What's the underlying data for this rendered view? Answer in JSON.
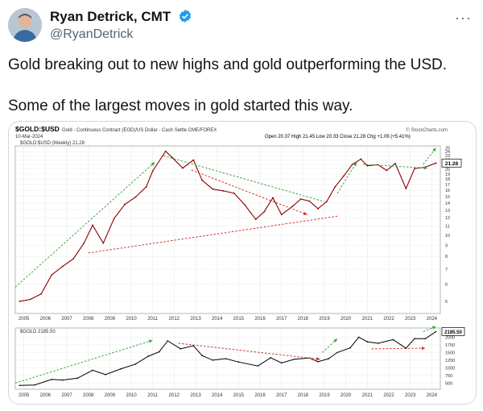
{
  "author": {
    "name": "Ryan Detrick, CMT",
    "handle": "@RyanDetrick",
    "verified_color": "#1d9bf0"
  },
  "menu_icon": "more-dots-icon",
  "tweet": {
    "line1": "Gold breaking out to new highs and gold outperforming the USD.",
    "line2": "Some of the largest moves in gold started this way."
  },
  "chart_data": [
    {
      "type": "line",
      "title": "$GOLD:$USD",
      "subtitle": "Gold - Continuous Contract (EOD)/US Dollar - Cash Settle CME/FOREX",
      "source": "© StockCharts.com",
      "date": "10-Mar-2024",
      "legend": "$GOLD:$USD (Weekly) 21.28",
      "ohlc": "Open 20.37  High 21.45  Low 20.33  Close 21.28  Chg +1.09 (+5.41%)",
      "last_value_label": "21.28",
      "x_ticks": [
        "2005",
        "2006",
        "2007",
        "2008",
        "2009",
        "2010",
        "2011",
        "2012",
        "2013",
        "2014",
        "2015",
        "2016",
        "2017",
        "2018",
        "2019",
        "2020",
        "2021",
        "2022",
        "2023",
        "2024"
      ],
      "y_ticks": [
        "25",
        "24",
        "23",
        "22",
        "21",
        "20",
        "19",
        "18",
        "17",
        "16",
        "15",
        "14",
        "13",
        "12",
        "11",
        "10",
        "9",
        "8",
        "7",
        "6",
        "5"
      ],
      "y_scale": "log",
      "x": [
        2004.8,
        2005.3,
        2005.8,
        2006.3,
        2006.8,
        2007.3,
        2007.8,
        2008.2,
        2008.7,
        2009.2,
        2009.7,
        2010.2,
        2010.7,
        2011.0,
        2011.6,
        2011.9,
        2012.4,
        2012.9,
        2013.3,
        2013.8,
        2014.3,
        2014.8,
        2015.3,
        2015.8,
        2016.2,
        2016.6,
        2017.0,
        2017.5,
        2017.9,
        2018.3,
        2018.7,
        2019.1,
        2019.5,
        2019.9,
        2020.3,
        2020.7,
        2021.0,
        2021.5,
        2021.9,
        2022.3,
        2022.8,
        2023.2,
        2023.7,
        2024.2
      ],
      "y": [
        5.0,
        5.1,
        5.4,
        6.6,
        7.2,
        7.8,
        9.2,
        11.1,
        9.2,
        11.9,
        13.8,
        14.9,
        16.6,
        19.6,
        24.1,
        22.6,
        20.2,
        22.0,
        17.8,
        16.2,
        15.9,
        15.5,
        13.7,
        11.8,
        12.8,
        14.8,
        12.4,
        13.5,
        14.6,
        14.3,
        13.2,
        14.2,
        16.6,
        18.6,
        21.0,
        22.2,
        20.7,
        20.9,
        19.7,
        21.2,
        16.3,
        20.1,
        20.4,
        21.3
      ]
    },
    {
      "type": "line",
      "legend": "$GOLD 2185.50",
      "last_value_label": "2185.50",
      "x_ticks": [
        "2005",
        "2006",
        "2007",
        "2008",
        "2009",
        "2010",
        "2011",
        "2012",
        "2013",
        "2014",
        "2015",
        "2016",
        "2017",
        "2018",
        "2019",
        "2020",
        "2021",
        "2022",
        "2023",
        "2024"
      ],
      "y_ticks": [
        "2000",
        "1750",
        "1500",
        "1250",
        "1000",
        "750",
        "500"
      ],
      "ylim": [
        300,
        2300
      ],
      "x": [
        2004.8,
        2005.5,
        2006.3,
        2006.8,
        2007.5,
        2008.2,
        2008.8,
        2009.5,
        2010.2,
        2010.8,
        2011.3,
        2011.7,
        2012.3,
        2012.9,
        2013.3,
        2013.8,
        2014.4,
        2015.0,
        2015.9,
        2016.5,
        2017.0,
        2017.6,
        2018.3,
        2018.7,
        2019.2,
        2019.6,
        2020.2,
        2020.6,
        2021.0,
        2021.5,
        2022.2,
        2022.8,
        2023.2,
        2023.7,
        2024.2
      ],
      "y": [
        425,
        440,
        620,
        600,
        660,
        920,
        780,
        960,
        1120,
        1380,
        1520,
        1880,
        1620,
        1720,
        1400,
        1250,
        1300,
        1190,
        1060,
        1330,
        1160,
        1280,
        1320,
        1200,
        1300,
        1500,
        1650,
        2000,
        1850,
        1800,
        1920,
        1640,
        1950,
        1950,
        2185
      ]
    }
  ]
}
